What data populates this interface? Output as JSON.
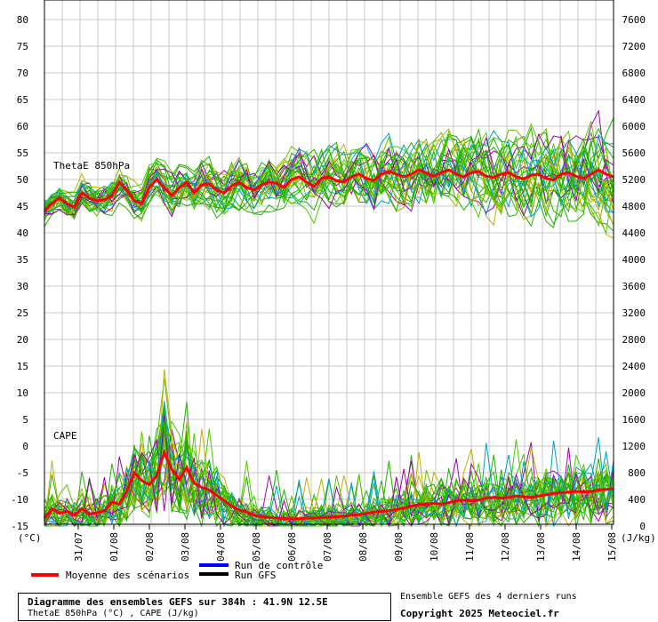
{
  "chart_data": {
    "type": "line",
    "title": "Diagramme des ensembles GEFS sur 384h : 41.9N 12.5E",
    "subtitle": "ThetaE 850hPa (°C) , CAPE (J/kg)",
    "left_axis": {
      "unit_label": "(°C)",
      "ylim": [
        -15,
        80
      ],
      "ticks": [
        "80",
        "75",
        "70",
        "65",
        "60",
        "55",
        "50",
        "45",
        "40",
        "35",
        "30",
        "25",
        "20",
        "15",
        "10",
        "5",
        "0",
        "-5",
        "-10",
        "-15"
      ]
    },
    "right_axis": {
      "unit_label": "(J/kg)",
      "ylim": [
        0,
        7600
      ],
      "ticks": [
        "7600",
        "7200",
        "6800",
        "6400",
        "6000",
        "5600",
        "5200",
        "4800",
        "4400",
        "4000",
        "3600",
        "3200",
        "2800",
        "2400",
        "2000",
        "1600",
        "1200",
        "800",
        "400",
        "0"
      ]
    },
    "x_ticks": [
      "31/07",
      "01/08",
      "02/08",
      "03/08",
      "04/08",
      "05/08",
      "06/08",
      "07/08",
      "08/08",
      "09/08",
      "10/08",
      "11/08",
      "12/08",
      "13/08",
      "14/08",
      "15/08"
    ],
    "panel_labels": {
      "thetae": "ThetaE 850hPa",
      "cape": "CAPE"
    },
    "series": [
      {
        "name": "Moyenne des scénarios",
        "variable": "ThetaE 850hPa",
        "color": "#ff0000",
        "values": [
          44.0,
          45.5,
          46.5,
          45.5,
          44.8,
          47.5,
          46.5,
          46.0,
          46.2,
          47.0,
          49.5,
          48.0,
          46.0,
          45.5,
          48.5,
          50.0,
          48.5,
          47.0,
          48.5,
          49.5,
          47.5,
          49.0,
          49.2,
          48.0,
          47.5,
          48.8,
          49.5,
          48.5,
          48.0,
          49.0,
          49.5,
          49.3,
          48.5,
          50.0,
          50.5,
          49.5,
          48.7,
          50.2,
          50.5,
          49.8,
          49.5,
          50.5,
          51.0,
          50.2,
          49.8,
          51.0,
          51.5,
          51.0,
          50.5,
          51.0,
          51.8,
          51.2,
          50.6,
          51.3,
          51.8,
          51.0,
          50.5,
          51.3,
          51.5,
          50.6,
          50.4,
          51.0,
          51.3,
          50.5,
          50.1,
          50.8,
          51.0,
          50.2,
          49.9,
          51.0,
          51.3,
          50.6,
          50.2,
          51.0,
          51.8,
          51.0,
          50.5
        ]
      },
      {
        "name": "Moyenne des scénarios",
        "variable": "CAPE",
        "color": "#ff0000",
        "values": [
          120,
          260,
          190,
          220,
          160,
          260,
          180,
          200,
          230,
          360,
          330,
          520,
          800,
          680,
          620,
          760,
          1100,
          850,
          700,
          880,
          640,
          580,
          540,
          460,
          380,
          300,
          240,
          210,
          160,
          140,
          130,
          120,
          110,
          110,
          110,
          120,
          120,
          130,
          130,
          140,
          150,
          160,
          170,
          190,
          210,
          220,
          230,
          250,
          270,
          300,
          320,
          330,
          340,
          330,
          350,
          380,
          390,
          380,
          390,
          420,
          430,
          420,
          430,
          450,
          440,
          430,
          450,
          470,
          490,
          500,
          510,
          520,
          510,
          520,
          540,
          550,
          560
        ]
      }
    ],
    "ensemble_members": 31,
    "legend": [
      {
        "label": "Moyenne des scénarios",
        "color": "#ff0000"
      },
      {
        "label": "Run de contrôle",
        "color": "#0000ff"
      },
      {
        "label": "Run GFS",
        "color": "#000000"
      }
    ],
    "grid": true
  },
  "footer": {
    "title": "Diagramme des ensembles GEFS sur 384h : 41.9N 12.5E",
    "subtitle": "ThetaE 850hPa (°C) , CAPE (J/kg)",
    "ensemble_note": "Ensemble GEFS des 4 derniers runs",
    "copyright": "Copyright 2025 Meteociel.fr"
  },
  "legend_labels": {
    "mean": "Moyenne des scénarios",
    "control": "Run de contrôle",
    "gfs": "Run GFS"
  }
}
